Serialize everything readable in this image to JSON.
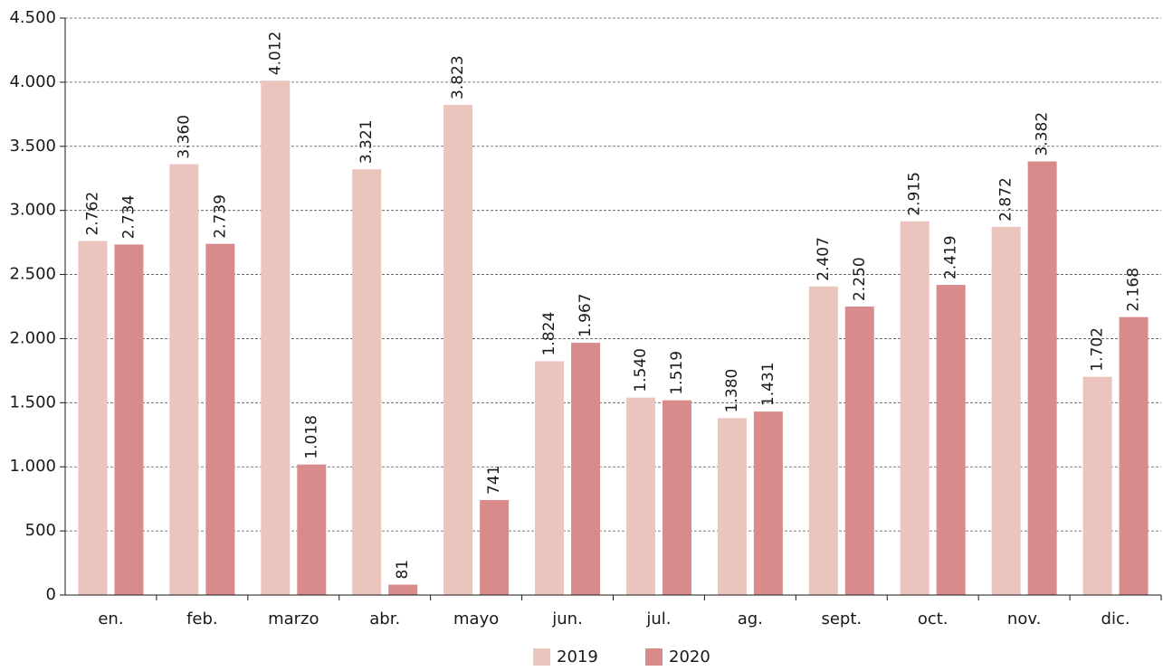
{
  "chart_data": {
    "type": "bar",
    "categories": [
      "en.",
      "feb.",
      "marzo",
      "abr.",
      "mayo",
      "jun.",
      "jul.",
      "ag.",
      "sept.",
      "oct.",
      "nov.",
      "dic."
    ],
    "series": [
      {
        "name": "2019",
        "color": "#ecc4be",
        "values": [
          2762,
          3360,
          4012,
          3321,
          3823,
          1824,
          1540,
          1380,
          2407,
          2915,
          2872,
          1702
        ],
        "value_labels": [
          "2.762",
          "3.360",
          "4.012",
          "3.321",
          "3.823",
          "1.824",
          "1.540",
          "1.380",
          "2.407",
          "2.915",
          "2.872",
          "1.702"
        ]
      },
      {
        "name": "2020",
        "color": "#d98b8b",
        "values": [
          2734,
          2739,
          1018,
          81,
          741,
          1967,
          1519,
          1431,
          2250,
          2419,
          3382,
          2168
        ],
        "value_labels": [
          "2.734",
          "2.739",
          "1.018",
          "81",
          "741",
          "1.967",
          "1.519",
          "1.431",
          "2.250",
          "2.419",
          "3.382",
          "2.168"
        ]
      }
    ],
    "ylim": [
      0,
      4500
    ],
    "yticks": [
      0,
      500,
      {
        "value": 1000,
        "label": "1.000"
      },
      {
        "value": 1500,
        "label": "1.500"
      },
      {
        "value": 2000,
        "label": "2.000"
      },
      {
        "value": 2500,
        "label": "2.500"
      },
      {
        "value": 3000,
        "label": "3.000"
      },
      {
        "value": 3500,
        "label": "3.500"
      },
      {
        "value": 4000,
        "label": "4.000"
      },
      {
        "value": 4500,
        "label": "4.500"
      }
    ],
    "grid": true,
    "legend": "bottom"
  }
}
